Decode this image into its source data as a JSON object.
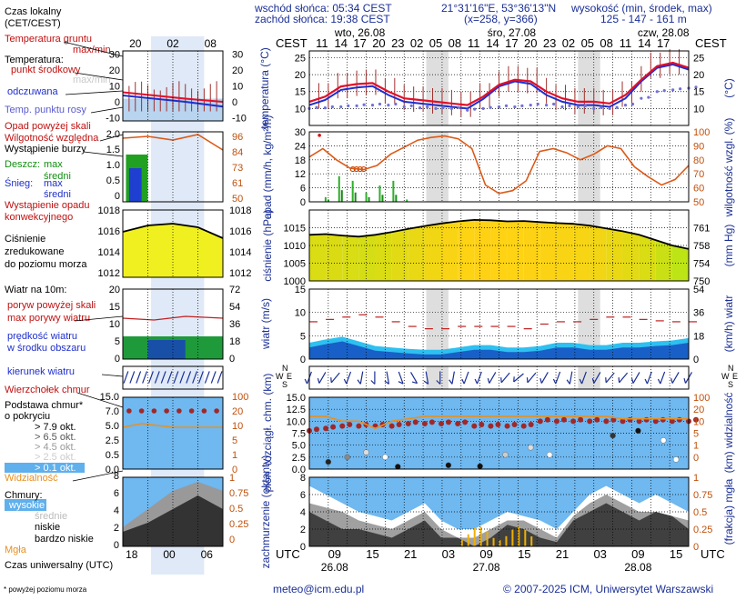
{
  "header": {
    "sunrise": "wschód słońca: 05:34 CEST",
    "sunset": "zachód słońca: 19:38 CEST",
    "coords": "21°31'16\"E, 53°36'13\"N",
    "grid": "(x=258, y=366)",
    "elevation_label": "wysokość (min, środek, max)",
    "elevation_values": "125 - 147 - 161 m"
  },
  "legend": {
    "local_time": "Czas lokalny",
    "local_time_zone": "(CET/CEST)",
    "soil_temp": "Temperatura gruntu",
    "maxmin": "max/min",
    "temperature": "Temperatura:",
    "mid_point": "punkt środkowy",
    "maxmin_dim": "max/min",
    "felt": "odczuwana",
    "dew_point": "Temp. punktu rosy",
    "precip_above": "Opad powyżej skali",
    "humidity": "Wilgotność względna",
    "storm": "Wystąpienie burzy",
    "rain": "Deszcz:",
    "rain_max": "max",
    "rain_avg": "średni",
    "snow": "Śnieg:",
    "snow_max": "max",
    "snow_avg": "średni",
    "convective": "Wystąpienie opadu",
    "convective2": "konwekcyjnego",
    "pressure1": "Ciśnienie",
    "pressure2": "zredukowane",
    "pressure3": "do poziomu morza",
    "wind": "Wiatr na 10m:",
    "gust_above": "poryw powyżej skali",
    "gust_max": "max porywy wiatru",
    "wind_speed": "prędkość wiatru",
    "wind_area": "w środku obszaru",
    "wind_dir": "kierunek wiatru",
    "cloud_top": "Wierzchołek chmur",
    "cloud_base1": "Podstawa chmur*",
    "cloud_base2": "o pokryciu",
    "okt79": "> 7.9 okt.",
    "okt65": "> 6.5 okt.",
    "okt45": "> 4.5 okt.",
    "okt25": "> 2.5 okt.",
    "okt01": "> 0.1 okt.",
    "visibility": "Widzialność",
    "clouds": "Chmury:",
    "high": "wysokie",
    "medium": "średnie",
    "low": "niskie",
    "very_low": "bardzo niskie",
    "fog": "Mgła",
    "utc": "Czas uniwersalny (UTC)",
    "footnote": "* powyżej poziomu morza"
  },
  "footer": {
    "email": "meteo@icm.edu.pl",
    "copyright": "© 2007-2025 ICM, Uniwersytet Warszawski"
  },
  "chart_data": {
    "type": "line",
    "time_axis": {
      "cest_label": "CEST",
      "utc_label": "UTC",
      "days_cest": [
        "wto, 26.08",
        "śro, 27.08",
        "czw, 28.08"
      ],
      "days_utc": [
        "26.08",
        "27.08",
        "28.08"
      ],
      "cest_ticks": [
        "11",
        "14",
        "17",
        "20",
        "23",
        "02",
        "05",
        "08",
        "11",
        "14",
        "17",
        "20",
        "23",
        "02",
        "05",
        "08",
        "11",
        "14",
        "17"
      ],
      "utc_ticks": [
        "09",
        "15",
        "21",
        "03",
        "09",
        "15",
        "21",
        "03",
        "09",
        "15"
      ],
      "legend_cest_ticks": [
        "20",
        "02",
        "08"
      ],
      "legend_utc_ticks": [
        "18",
        "00",
        "06"
      ],
      "hours_utc": [
        6,
        9,
        12,
        15,
        18,
        21,
        24,
        27,
        30,
        33,
        36,
        39,
        42,
        45,
        48,
        51,
        54,
        57,
        60,
        63,
        66
      ],
      "span_hours": 60
    },
    "temperature": {
      "ylabel": "temperatura (°C)",
      "ylim": [
        5,
        27
      ],
      "ticks": [
        10,
        15,
        20,
        25
      ],
      "legend_ticks": [
        -10,
        0,
        10,
        20,
        30
      ],
      "mid": [
        12.0,
        13.5,
        16.5,
        17.2,
        17.5,
        15.0,
        13.0,
        12.5,
        12.0,
        11.5,
        11.0,
        13.5,
        17.0,
        18.5,
        18.0,
        15.0,
        13.0,
        12.0,
        12.0,
        11.5,
        14.0,
        18.5,
        22.5,
        23.5,
        22.0
      ],
      "felt": [
        11.0,
        12.5,
        15.5,
        16.2,
        16.6,
        14.0,
        12.0,
        11.5,
        11.0,
        10.5,
        10.0,
        12.8,
        16.5,
        18.0,
        17.3,
        14.0,
        12.0,
        11.0,
        11.0,
        10.5,
        13.0,
        18.0,
        22.0,
        23.0,
        21.5
      ],
      "dew": [
        10.0,
        10.2,
        10.5,
        10.8,
        11.0,
        11.0,
        10.5,
        10.2,
        10.0,
        10.0,
        9.5,
        10.0,
        10.5,
        10.5,
        11.0,
        11.0,
        10.5,
        10.5,
        10.0,
        10.0,
        11.0,
        13.0,
        15.0,
        15.5,
        16.0
      ]
    },
    "precip_humidity": {
      "ylabel_left": "opad (mm/h, kg/m²/h)",
      "ylabel_right": "wilgotność wzgl. (%)",
      "ylim_left": [
        0,
        30
      ],
      "ticks_left": [
        0,
        6,
        12,
        18,
        24,
        30
      ],
      "ylim_right": [
        50,
        100
      ],
      "ticks_right": [
        50,
        60,
        70,
        80,
        90,
        100
      ],
      "humidity": [
        82,
        88,
        80,
        74,
        73,
        76,
        84,
        89,
        94,
        96,
        97,
        95,
        88,
        62,
        56,
        58,
        65,
        86,
        88,
        85,
        80,
        84,
        90,
        88,
        75,
        68,
        62,
        66,
        76
      ],
      "rain_max": [
        0,
        2,
        11,
        9,
        4,
        7,
        9,
        1,
        0,
        0,
        0,
        0,
        0,
        0,
        0,
        0,
        0,
        0,
        0,
        0,
        0,
        0,
        0,
        0,
        0,
        0,
        0,
        0,
        0
      ],
      "rain_avg": [
        0,
        1,
        5,
        4,
        2,
        3,
        3,
        0,
        0,
        0,
        0,
        0,
        0,
        0,
        0,
        0,
        0,
        0,
        0,
        0,
        0,
        0,
        0,
        0,
        0,
        0,
        0,
        0,
        0
      ],
      "storm_hours": [
        12,
        14,
        16,
        18
      ]
    },
    "pressure": {
      "ylabel_left": "ciśnienie (hPa)",
      "ylabel_right": "(mm Hg)",
      "ylim": [
        1000,
        1020
      ],
      "ticks": [
        1000,
        1005,
        1010,
        1015
      ],
      "ticks_right": [
        750,
        754,
        758,
        761
      ],
      "legend_ticks": [
        1012,
        1014,
        1016,
        1018
      ],
      "values": [
        1013,
        1013.2,
        1012.8,
        1012.5,
        1013,
        1013.8,
        1014.7,
        1015.5,
        1016.2,
        1016.8,
        1017.2,
        1017.1,
        1016.8,
        1016.9,
        1016.6,
        1016.3,
        1016.1,
        1015.6,
        1014.8,
        1014,
        1013,
        1011.5,
        1010,
        1009
      ]
    },
    "wind": {
      "ylabel_left": "wiatr (m/s)",
      "ylabel_right": "(km/h) wiatr",
      "ylim": [
        0,
        15
      ],
      "ticks": [
        0,
        5,
        10,
        15
      ],
      "ticks_right": [
        0,
        18,
        36,
        54
      ],
      "legend_ticks": [
        0,
        5,
        10,
        15,
        20
      ],
      "legend_ticks_right": [
        0,
        18,
        36,
        54,
        72
      ],
      "speed": [
        2.5,
        3.2,
        3.8,
        2.8,
        1.8,
        1.5,
        1.2,
        1.0,
        1.0,
        1.5,
        2.0,
        2.0,
        1.5,
        1.5,
        1.8,
        2.5,
        2.5,
        2.0,
        2.0,
        2.5,
        2.5,
        2.8,
        3.0,
        3.5
      ],
      "gust": [
        8,
        8.5,
        9,
        9.5,
        9,
        8,
        7,
        6.5,
        6.5,
        7,
        7,
        7,
        7,
        6.5,
        7.5,
        8,
        8,
        8.5,
        9,
        9,
        8.5,
        8.2,
        8,
        8
      ]
    },
    "wind_direction": {
      "compass": [
        "N",
        "E",
        "S",
        "W"
      ],
      "angles_deg": [
        200,
        210,
        220,
        200,
        190,
        180,
        170,
        160,
        150,
        170,
        180,
        190,
        200,
        200,
        210,
        220,
        230,
        220,
        210,
        200,
        190,
        200,
        210,
        220,
        220,
        210,
        200,
        200,
        210,
        210
      ]
    },
    "cloud_base": {
      "ylabel_left": "pion. rozciągł. chm. (km)",
      "ylabel_right": "(km) widzialność",
      "ylim": [
        0,
        15
      ],
      "ticks": [
        0.0,
        2.5,
        5.0,
        7.5,
        10.0,
        12.5,
        15.0
      ],
      "ticks_right": [
        0,
        1,
        5,
        10,
        20,
        100
      ],
      "legend_ticks": [
        0.0,
        2.5,
        5.0,
        7.5,
        10.0,
        12.5,
        15.0
      ],
      "legend_ticks_right": [
        0,
        1,
        5,
        10,
        20,
        100
      ],
      "top": [
        8,
        8.5,
        9,
        9,
        9,
        9,
        9.5,
        9.5,
        9.5,
        9.5,
        9,
        9,
        9,
        9,
        10,
        10,
        10,
        10,
        10,
        10,
        10,
        10,
        10,
        10
      ],
      "visibility": [
        11,
        11,
        10,
        10,
        8.5,
        10,
        10.5,
        11,
        11,
        11,
        11,
        11,
        11,
        11,
        11,
        11,
        11,
        11,
        11,
        10.5,
        10.5,
        10.5,
        10.5,
        10.5
      ]
    },
    "clouds": {
      "ylabel_left": "zachmurzenie (oktanty)",
      "ylabel_right": "(frakcja) mgła",
      "ylim": [
        0,
        8
      ],
      "ticks": [
        0,
        2,
        4,
        6,
        8
      ],
      "ticks_right": [
        "0",
        "0.25",
        "0.5",
        "0.75",
        "1"
      ],
      "legend_ticks_right": [
        "0",
        "0.25",
        "0.5",
        "0.75",
        "1"
      ],
      "low": [
        4,
        3,
        2,
        2,
        1.5,
        1,
        2,
        3,
        1,
        1,
        0,
        1,
        2.5,
        2,
        1,
        0.5,
        3,
        4,
        5,
        4,
        3,
        4,
        3.5,
        2
      ],
      "medium": [
        5,
        4.5,
        4,
        3,
        2.5,
        2,
        3,
        4,
        2,
        1,
        1,
        2,
        3,
        3,
        2,
        1,
        3.5,
        5,
        6,
        5,
        4,
        4,
        3.5,
        3
      ],
      "high": [
        7,
        6,
        5,
        4,
        3.5,
        3,
        4,
        5,
        3,
        2,
        2,
        3,
        4,
        3.5,
        3,
        2,
        4,
        6,
        7,
        6,
        5,
        6,
        5,
        4
      ]
    }
  }
}
